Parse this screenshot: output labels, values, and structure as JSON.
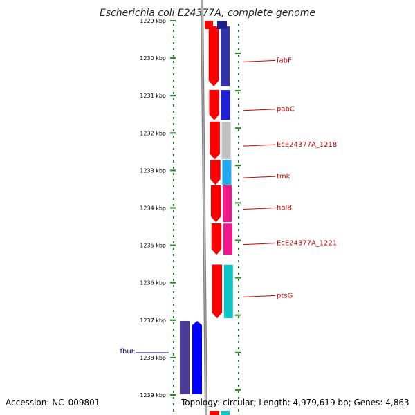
{
  "title": "Escherichia coli E24377A, complete genome",
  "footer": {
    "accession": "Accession: NC_009801",
    "topology": "Topology: circular; Length: 4,979,619 bp; Genes: 4,863"
  },
  "ticks": [
    {
      "label": "1229 kbp",
      "kbp": 1229
    },
    {
      "label": "1230 kbp",
      "kbp": 1230
    },
    {
      "label": "1231 kbp",
      "kbp": 1231
    },
    {
      "label": "1232 kbp",
      "kbp": 1232
    },
    {
      "label": "1233 kbp",
      "kbp": 1233
    },
    {
      "label": "1234 kbp",
      "kbp": 1234
    },
    {
      "label": "1235 kbp",
      "kbp": 1235
    },
    {
      "label": "1236 kbp",
      "kbp": 1236
    },
    {
      "label": "1237 kbp",
      "kbp": 1237
    },
    {
      "label": "1238 kbp",
      "kbp": 1238
    },
    {
      "label": "1239 kbp",
      "kbp": 1239
    }
  ],
  "genes_right": [
    {
      "name": "fabF",
      "start": 1229.15,
      "end": 1230.75,
      "func_color": "#3333a8"
    },
    {
      "name": "pabC",
      "start": 1230.85,
      "end": 1231.65,
      "func_color": "#1f1fd6"
    },
    {
      "name": "EcE24377A_1218",
      "start": 1231.7,
      "end": 1232.7,
      "func_color": "#c0c0c0"
    },
    {
      "name": "tmk",
      "start": 1232.72,
      "end": 1233.38,
      "func_color": "#22a8ee"
    },
    {
      "name": "holB",
      "start": 1233.4,
      "end": 1234.38,
      "func_color": "#ee1a8c"
    },
    {
      "name": "EcE24377A_1221",
      "start": 1234.42,
      "end": 1235.25,
      "func_color": "#ee1a8c"
    },
    {
      "name": "ptsG",
      "start": 1235.52,
      "end": 1236.95,
      "func_color": "#11c4c4"
    }
  ],
  "genes_left": [
    {
      "name": "fhuE",
      "start": 1236.8,
      "end": 1239.1,
      "func_color": "#4a3c96"
    }
  ],
  "colors": {
    "cds_forward": "#ff0000",
    "cds_reverse": "#0000ff",
    "backbone": "#808080",
    "tick": "#228b22",
    "label_right": "#cc0000",
    "label_left": "#000080"
  }
}
